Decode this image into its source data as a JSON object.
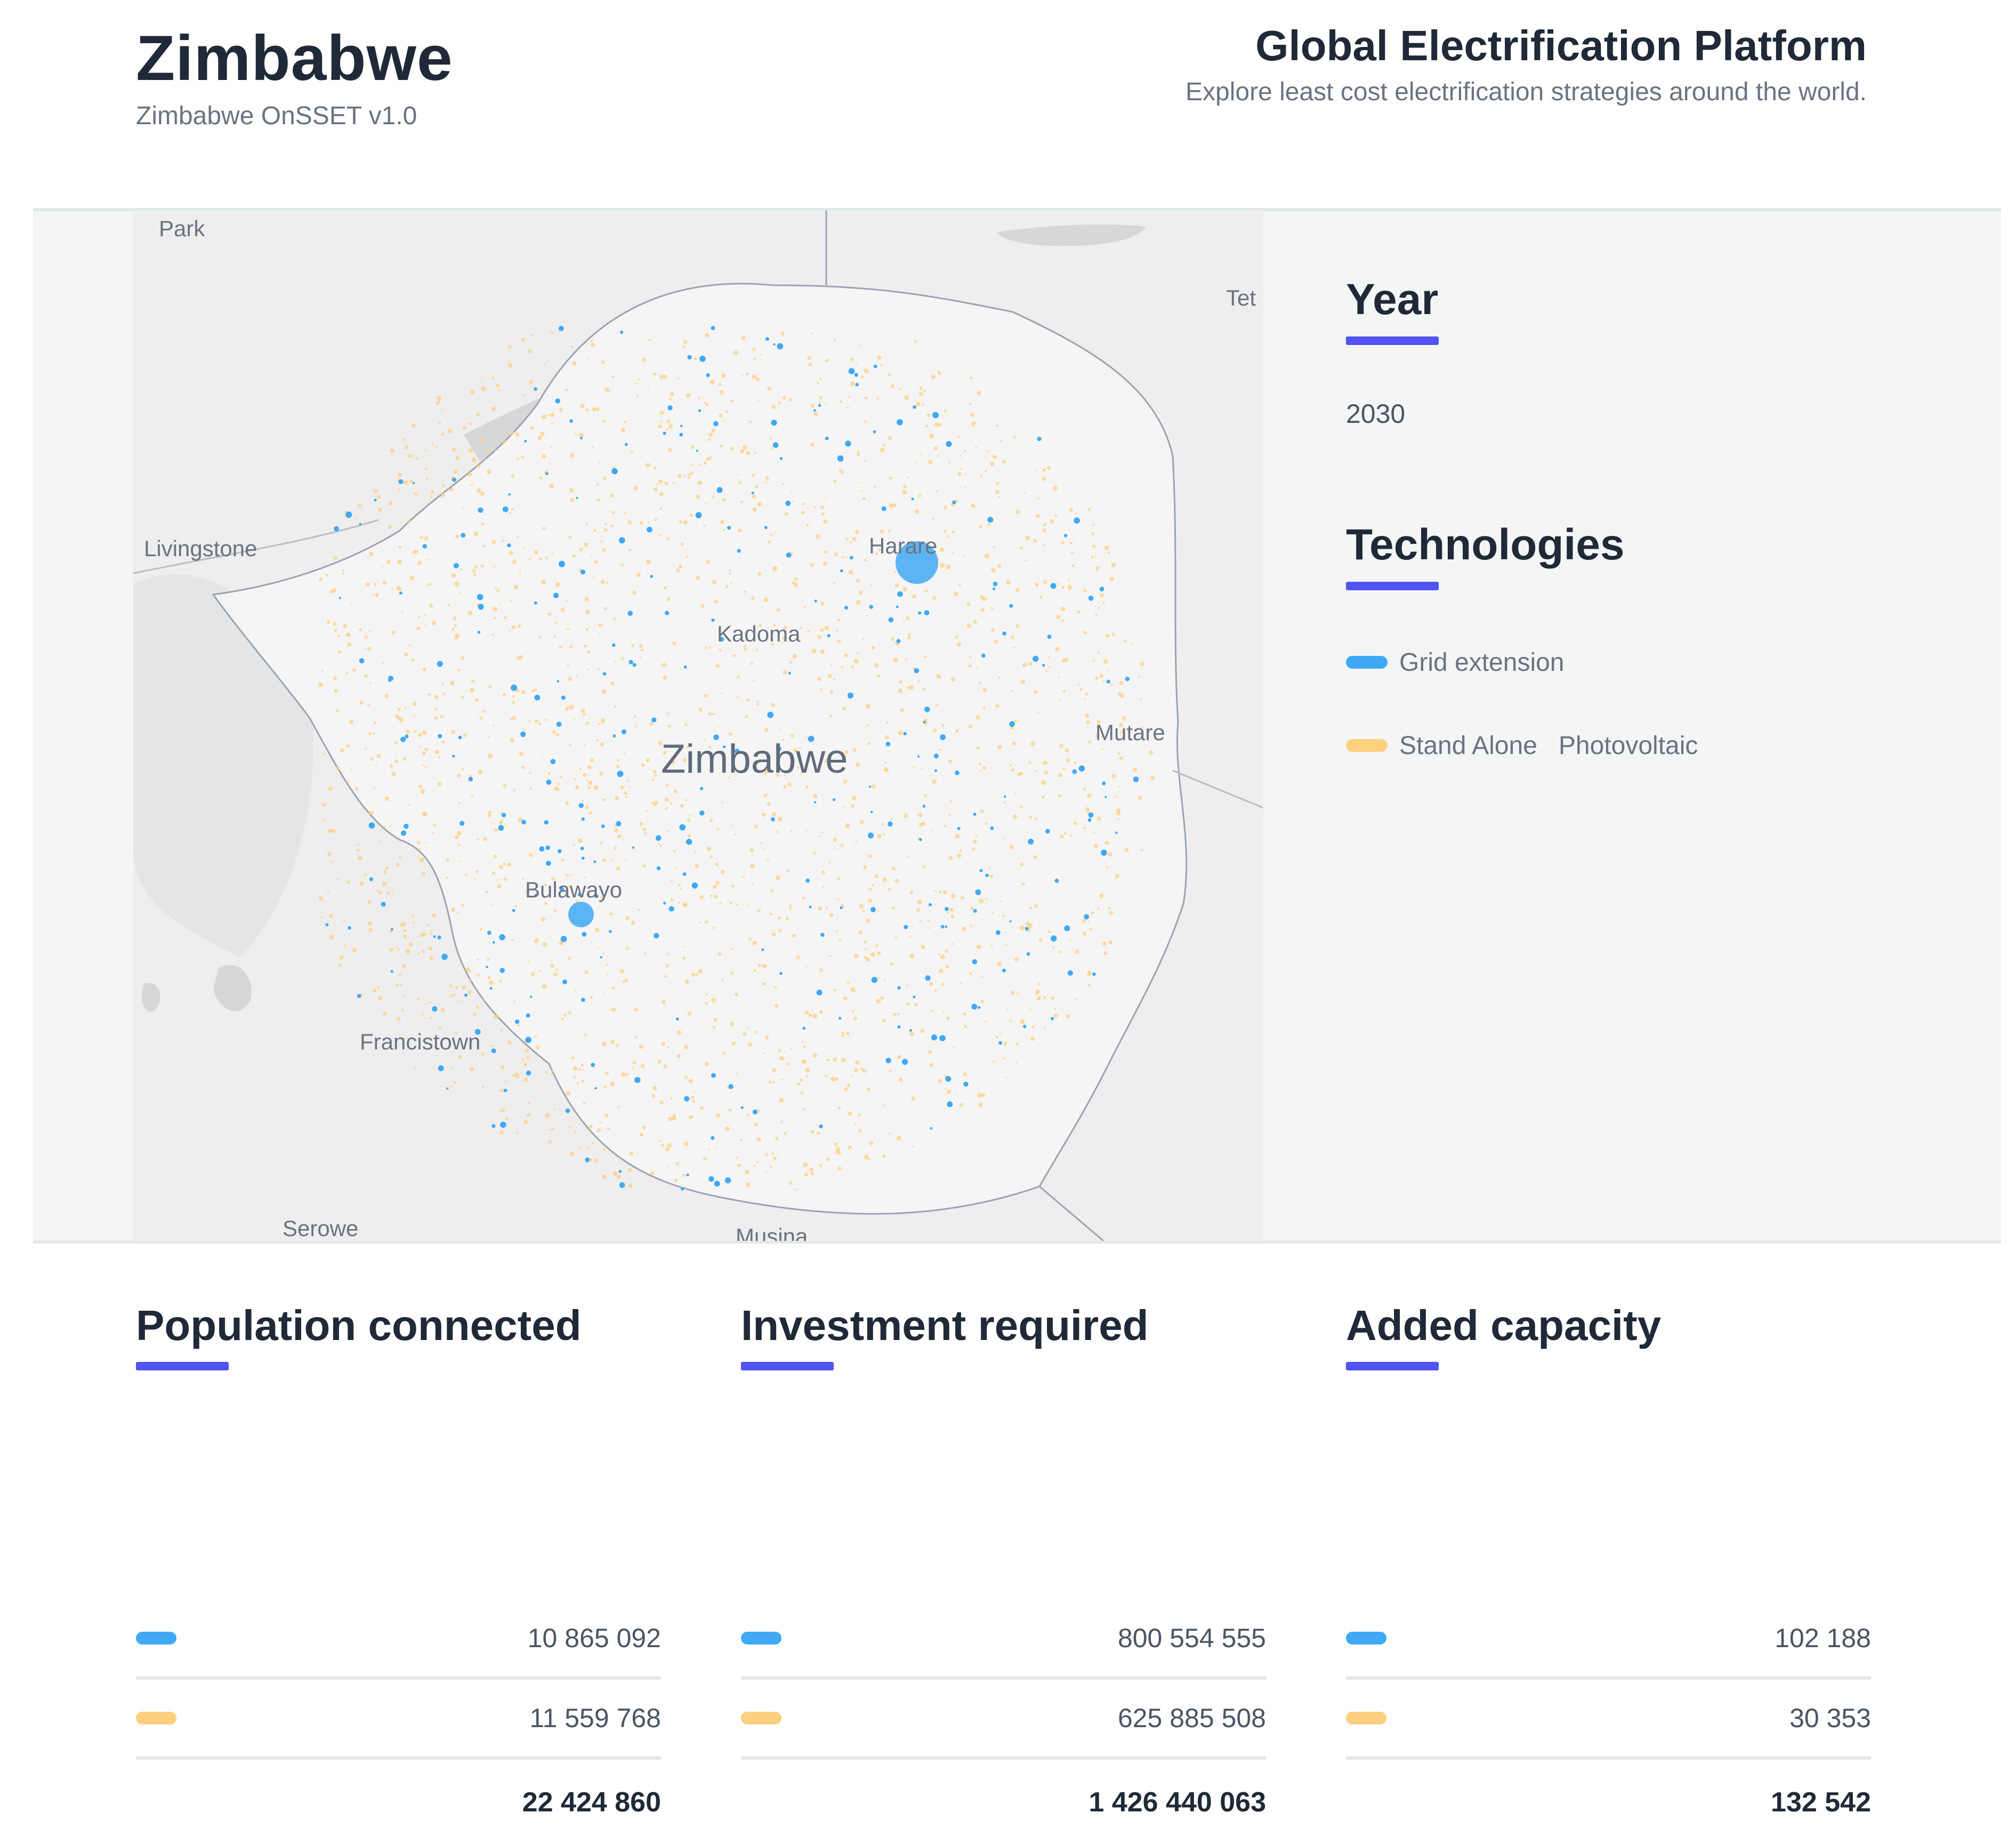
{
  "header": {
    "country": "Zimbabwe",
    "subtitle": "Zimbabwe OnSSET v1.0",
    "platform_title": "Global Electrification Platform",
    "platform_subtitle": "Explore least cost electrification strategies around the world."
  },
  "map": {
    "labels": {
      "park": "Park",
      "tet": "Tet",
      "livingstone": "Livingstone",
      "harare": "Harare",
      "kadoma": "Kadoma",
      "country": "Zimbabwe",
      "mutare": "Mutare",
      "bulawayo": "Bulawayo",
      "francistown": "Francistown",
      "serowe": "Serowe",
      "musina": "Musina"
    }
  },
  "sidebar": {
    "year_heading": "Year",
    "year_value": "2030",
    "tech_heading": "Technologies",
    "technologies": [
      {
        "label": "Grid extension",
        "color": "#3fa9f5"
      },
      {
        "label": "Stand Alone   Photovoltaic",
        "color": "#ffcf80"
      }
    ]
  },
  "stats": [
    {
      "heading": "Population connected",
      "rows": [
        "10 865 092",
        "11 559 768"
      ],
      "total": "22 424 860"
    },
    {
      "heading": "Investment required",
      "rows": [
        "800 554 555",
        "625 885 508"
      ],
      "total": "1 426 440 063"
    },
    {
      "heading": "Added capacity",
      "rows": [
        "102 188",
        "30 353"
      ],
      "total": "132 542"
    }
  ],
  "colors": {
    "accent": "#4f54f2",
    "grid": "#3fa9f5",
    "solar": "#ffcf80"
  }
}
